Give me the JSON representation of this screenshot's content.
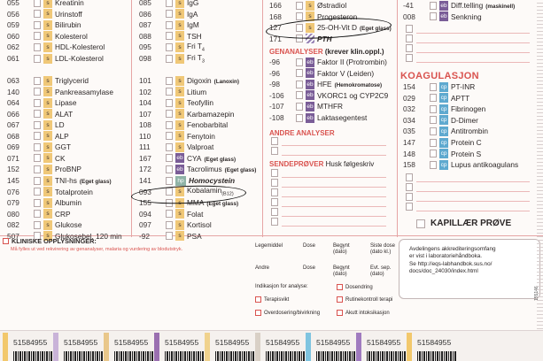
{
  "column1": [
    {
      "code": "055",
      "tag": "s",
      "name": "Kreatinin"
    },
    {
      "code": "056",
      "tag": "s",
      "name": "Urinstoff"
    },
    {
      "code": "059",
      "tag": "s",
      "name": "Bilirubin"
    },
    {
      "code": "060",
      "tag": "s",
      "name": "Kolesterol"
    },
    {
      "code": "062",
      "tag": "s",
      "name": "HDL-Kolesterol"
    },
    {
      "code": "061",
      "tag": "s",
      "name": "LDL-Kolesterol"
    },
    {
      "code": "",
      "tag": "blank",
      "name": ""
    },
    {
      "code": "063",
      "tag": "s",
      "name": "Triglycerid"
    },
    {
      "code": "140",
      "tag": "s",
      "name": "Pankreasamylase"
    },
    {
      "code": "064",
      "tag": "s",
      "name": "Lipase"
    },
    {
      "code": "066",
      "tag": "s",
      "name": "ALAT"
    },
    {
      "code": "067",
      "tag": "s",
      "name": "LD"
    },
    {
      "code": "068",
      "tag": "s",
      "name": "ALP"
    },
    {
      "code": "069",
      "tag": "s",
      "name": "GGT"
    },
    {
      "code": "071",
      "tag": "s",
      "name": "CK"
    },
    {
      "code": "152",
      "tag": "s",
      "name": "ProBNP"
    },
    {
      "code": "145",
      "tag": "s",
      "name": "TNI-hs",
      "note": "(Eget glass)"
    },
    {
      "code": "076",
      "tag": "s",
      "name": "Totalprotein"
    },
    {
      "code": "079",
      "tag": "s",
      "name": "Albumin"
    },
    {
      "code": "080",
      "tag": "s",
      "name": "CRP"
    },
    {
      "code": "082",
      "tag": "s",
      "name": "Glukose"
    },
    {
      "code": "507",
      "tag": "s",
      "name": "Glukosebel. 120 min"
    }
  ],
  "column2": [
    {
      "code": "085",
      "tag": "s",
      "name": "IgG"
    },
    {
      "code": "086",
      "tag": "s",
      "name": "IgA"
    },
    {
      "code": "087",
      "tag": "s",
      "name": "IgM"
    },
    {
      "code": "088",
      "tag": "s",
      "name": "TSH"
    },
    {
      "code": "095",
      "tag": "s",
      "name": "Fri T",
      "sub": "4"
    },
    {
      "code": "098",
      "tag": "s",
      "name": "Fri T",
      "sub": "3"
    },
    {
      "code": "",
      "tag": "blank",
      "name": ""
    },
    {
      "code": "101",
      "tag": "s",
      "name": "Digoxin",
      "note": "(Lanoxin)"
    },
    {
      "code": "102",
      "tag": "s",
      "name": "Litium"
    },
    {
      "code": "104",
      "tag": "s",
      "name": "Teofyllin"
    },
    {
      "code": "107",
      "tag": "s",
      "name": "Karbamazepin"
    },
    {
      "code": "108",
      "tag": "s",
      "name": "Fenobarbital"
    },
    {
      "code": "110",
      "tag": "s",
      "name": "Fenytoin"
    },
    {
      "code": "111",
      "tag": "s",
      "name": "Valproat"
    },
    {
      "code": "167",
      "tag": "eb",
      "name": "CYA",
      "note": "(Eget glass)"
    },
    {
      "code": "172",
      "tag": "eb",
      "name": "Tacrolimus",
      "note": "(Eget glass)"
    },
    {
      "code": "141",
      "tag": "hp",
      "name": "Homocystein",
      "style": "bi"
    },
    {
      "code": "093",
      "tag": "s",
      "name": "Kobalamin",
      "sub": "(B12)"
    },
    {
      "code": "155",
      "tag": "s",
      "name": "MMA",
      "note": "(Eget glass)"
    },
    {
      "code": "094",
      "tag": "s",
      "name": "Folat"
    },
    {
      "code": "097",
      "tag": "s",
      "name": "Kortisol"
    },
    {
      "code": "-92",
      "tag": "s",
      "name": "PSA"
    }
  ],
  "column3_top": [
    {
      "code": "166",
      "tag": "s",
      "name": "Østradiol"
    },
    {
      "code": "168",
      "tag": "s",
      "name": "Progesteron"
    },
    {
      "code": "127",
      "tag": "s",
      "name": "25-OH-Vit D",
      "note": "(Eget glass)"
    },
    {
      "code": "171",
      "tag": "pth",
      "name": "PTH",
      "style": "bi"
    }
  ],
  "genanalyser": {
    "title": "GENANALYSER",
    "subtitle": "(krever klin.oppl.)",
    "items": [
      {
        "code": "-96",
        "tag": "eb",
        "name": "Faktor II (Protrombin)"
      },
      {
        "code": "-96",
        "tag": "eb",
        "name": "Faktor V (Leiden)"
      },
      {
        "code": "-98",
        "tag": "eb",
        "name": "HFE",
        "note": "(Hemokromatose)"
      },
      {
        "code": "-106",
        "tag": "eb",
        "name": "VKORC1 og CYP2C9"
      },
      {
        "code": "-107",
        "tag": "eb",
        "name": "MTHFR"
      },
      {
        "code": "-108",
        "tag": "eb",
        "name": "Laktasegentest"
      }
    ]
  },
  "andre_analyser": {
    "title": "ANDRE ANALYSER"
  },
  "sendeprover": {
    "title": "SENDEPRØVER",
    "subtitle": "Husk følgeskriv"
  },
  "column4_top": [
    {
      "code": "-41",
      "tag": "eb",
      "name": "Diff.telling",
      "note": "(maskinell)"
    },
    {
      "code": "008",
      "tag": "eb",
      "name": "Senkning"
    }
  ],
  "koagulasjon": {
    "title": "KOAGULASJON",
    "items": [
      {
        "code": "154",
        "tag": "cp",
        "name": "PT-INR"
      },
      {
        "code": "029",
        "tag": "cp",
        "name": "APTT"
      },
      {
        "code": "032",
        "tag": "cp",
        "name": "Fibrinogen"
      },
      {
        "code": "034",
        "tag": "cp",
        "name": "D-Dimer"
      },
      {
        "code": "035",
        "tag": "cp",
        "name": "Antitrombin"
      },
      {
        "code": "147",
        "tag": "cp",
        "name": "Protein C"
      },
      {
        "code": "148",
        "tag": "cp",
        "name": "Protein S"
      },
      {
        "code": "158",
        "tag": "cp",
        "name": "Lupus antikoagulans"
      }
    ]
  },
  "kapillaer": "KAPILLÆR PRØVE",
  "clinical": {
    "title": "KLINISKE OPPLYSNINGER:",
    "subtitle": "Må fylles ut ved rekvirering av genanalyser, malaria og vurdering av blodutstryk."
  },
  "medication": {
    "legemiddel": "Legemiddel",
    "dose": "Dose",
    "begynt": "Begynt (dato)",
    "siste_dose": "Siste dose (dato kl.)",
    "andre": "Andre",
    "dose2": "Dose",
    "begynt2": "Begynt (dato)",
    "evt_sep": "Evt. sep. (dato)",
    "indikasjon": "Indikasjon for analyse:",
    "dosendring": "Dosendring",
    "terapisvikt": "Terapisvikt",
    "rutinekontroll": "Rutinekontroll terapi",
    "overdosering": "Overdosering/bivirkning",
    "akutt": "Akutt intoksikasjon"
  },
  "accreditation": {
    "line1": "Avdelingens akkrediteringsomfang",
    "line2": "er vist i laboratoriehåndboka.",
    "line3": "Se http://eqs-labhandbok.sus.no/",
    "line4": "docs/doc_24030/index.html"
  },
  "form_code": "155146",
  "labels": {
    "number": "51584955",
    "items": [
      {
        "color": "#f2c86c"
      },
      {
        "color": "#c9b3d8"
      },
      {
        "color": "#e9c78a"
      },
      {
        "color": "#9a6fb0"
      },
      {
        "color": "#f0d28d"
      },
      {
        "color": "#d9d0c6"
      },
      {
        "color": "#7fc4e0"
      },
      {
        "color": "#a07bbf"
      },
      {
        "color": "#f2c86c"
      }
    ]
  }
}
